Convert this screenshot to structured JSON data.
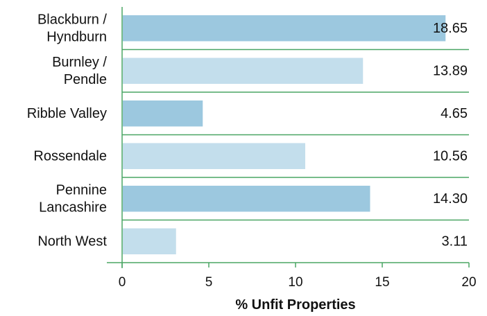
{
  "chart_data": {
    "type": "bar",
    "orientation": "horizontal",
    "categories": [
      [
        "Blackburn /",
        "Hyndburn"
      ],
      [
        "Burnley /",
        "Pendle"
      ],
      [
        "Ribble Valley"
      ],
      [
        "Rossendale"
      ],
      [
        "Pennine",
        "Lancashire"
      ],
      [
        "North West"
      ]
    ],
    "values": [
      18.65,
      13.89,
      4.65,
      10.56,
      14.3,
      3.11
    ],
    "value_labels": [
      "18.65",
      "13.89",
      "4.65",
      "10.56",
      "14.30",
      "3.11"
    ],
    "xlabel": "% Unfit Properties",
    "xlim": [
      0,
      20
    ],
    "xticks": [
      0,
      5,
      10,
      15,
      20
    ],
    "xtick_labels": [
      "0",
      "5",
      "10",
      "15",
      "20"
    ],
    "grid": "horizontal separators",
    "legend": "none",
    "colors": {
      "bar_dark": "#9cc8df",
      "bar_light": "#c3deec",
      "axis": "#4aa564",
      "text": "#111111"
    }
  }
}
